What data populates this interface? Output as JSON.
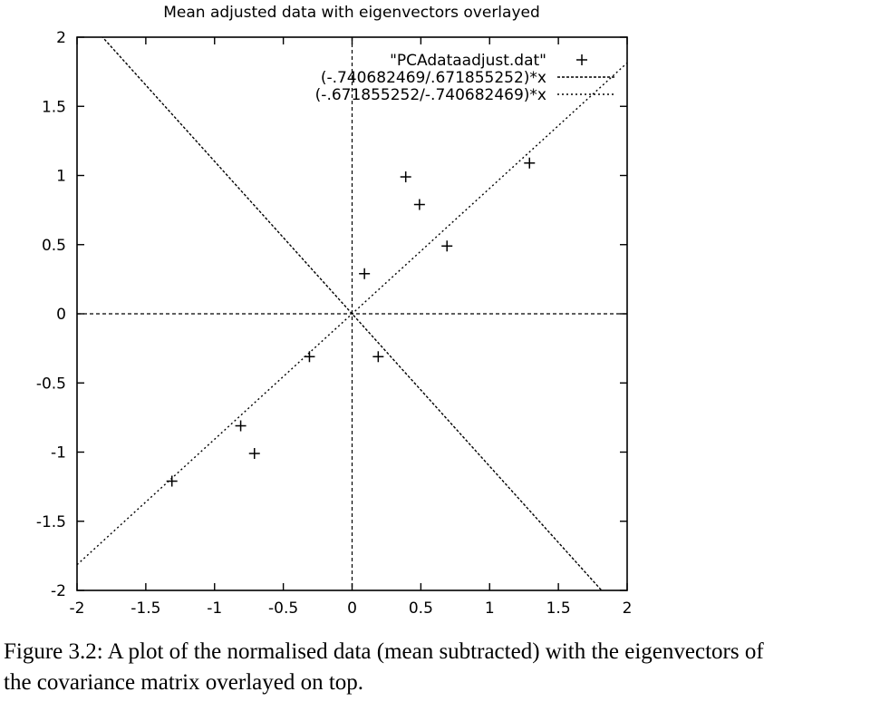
{
  "chart_data": {
    "type": "scatter",
    "title": "Mean adjusted data with eigenvectors overlayed",
    "xlim": [
      -2,
      2
    ],
    "ylim": [
      -2,
      2
    ],
    "xticks": [
      "-2",
      "-1.5",
      "-1",
      "-0.5",
      "0",
      "0.5",
      "1",
      "1.5",
      "2"
    ],
    "yticks": [
      "-2",
      "-1.5",
      "-1",
      "-0.5",
      "0",
      "0.5",
      "1",
      "1.5",
      "2"
    ],
    "x_tick_values": [
      -2,
      -1.5,
      -1,
      -0.5,
      0,
      0.5,
      1,
      1.5,
      2
    ],
    "y_tick_values": [
      -2,
      -1.5,
      -1,
      -0.5,
      0,
      0.5,
      1,
      1.5,
      2
    ],
    "grid": false,
    "zero_axes": true,
    "legend_position": "top-right",
    "series": [
      {
        "name": "\"PCAdataadjust.dat\"",
        "kind": "points",
        "marker": "plus",
        "x": [
          0.69,
          -1.31,
          0.39,
          0.09,
          1.29,
          0.49,
          0.19,
          -0.81,
          -0.31,
          -0.71
        ],
        "y": [
          0.49,
          -1.21,
          0.99,
          0.29,
          1.09,
          0.79,
          -0.31,
          -0.81,
          -0.31,
          -1.01
        ]
      },
      {
        "name": "(-.740682469/.671855252)*x",
        "kind": "line",
        "slope": -1.1024,
        "dash": "dense"
      },
      {
        "name": "(-.671855252/-.740682469)*x",
        "kind": "line",
        "slope": 0.9071,
        "dash": "sparse"
      }
    ]
  },
  "caption": {
    "line1": "Figure 3.2:  A plot of the normalised data (mean subtracted) with the eigenvectors of",
    "line2": "the covariance matrix overlayed on top."
  }
}
